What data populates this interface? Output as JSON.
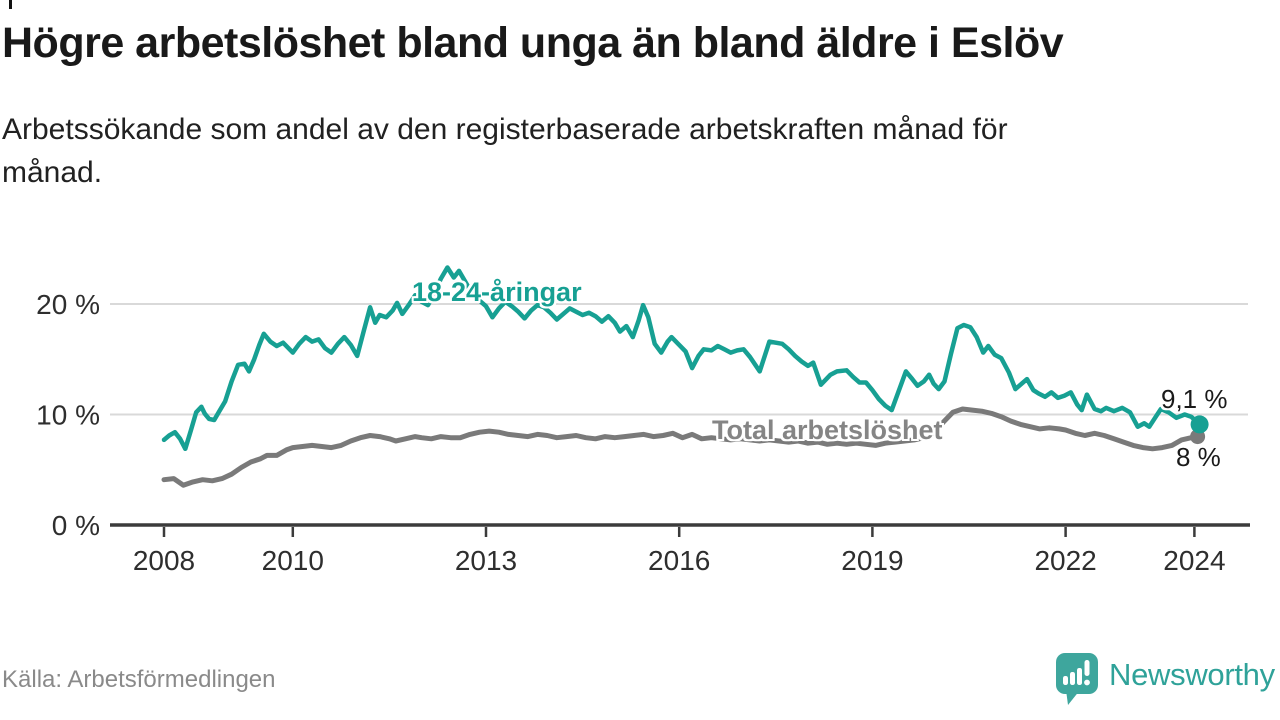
{
  "page": {
    "title": "Högre arbetslöshet bland unga än bland äldre i Eslöv",
    "subtitle": "Arbetssökande som andel av den registerbaserade arbetskraften månad för månad.",
    "source": "Källa: Arbetsförmedlingen",
    "brand": {
      "name": "Newsworthy",
      "icon": "newsworthy-speech-bubble-chart-icon"
    }
  },
  "colors": {
    "youth": "#17A093",
    "total": "#7A7A7A",
    "total_label": "#858585",
    "grid": "#D9D9D9",
    "axis": "#3B3B3B",
    "axis_text": "#2E2E2E",
    "value_text": "#1A1A1A",
    "brand_teal": "#2FA299",
    "brand_bubble": "#3EA69D"
  },
  "chart_data": {
    "type": "line",
    "title": "Högre arbetslöshet bland unga än bland äldre i Eslöv",
    "subtitle": "Arbetssökande som andel av den registerbaserade arbetskraften månad för månad.",
    "unit": "%",
    "x_unit": "decimal_year",
    "xlabel": "",
    "ylabel": "",
    "xlim": [
      2007.9,
      2024.4
    ],
    "ylim": [
      0,
      24
    ],
    "grid": "horizontal",
    "legend": "inline-labels",
    "x_ticks": [
      {
        "value": 2008,
        "label": "2008"
      },
      {
        "value": 2010,
        "label": "2010"
      },
      {
        "value": 2013,
        "label": "2013"
      },
      {
        "value": 2016,
        "label": "2016"
      },
      {
        "value": 2019,
        "label": "2019"
      },
      {
        "value": 2022,
        "label": "2022"
      },
      {
        "value": 2024,
        "label": "2024"
      }
    ],
    "y_ticks": [
      {
        "value": 0,
        "label": "0 %"
      },
      {
        "value": 10,
        "label": "10 %"
      },
      {
        "value": 20,
        "label": "20 %"
      }
    ],
    "series": [
      {
        "id": "youth",
        "name": "18-24-åringar",
        "color": "#17A093",
        "end_label": "9,1 %",
        "end_value": 9.1,
        "points": [
          [
            2008.0,
            7.7
          ],
          [
            2008.08,
            8.1
          ],
          [
            2008.17,
            8.4
          ],
          [
            2008.25,
            7.8
          ],
          [
            2008.33,
            6.9
          ],
          [
            2008.42,
            8.6
          ],
          [
            2008.5,
            10.2
          ],
          [
            2008.58,
            10.7
          ],
          [
            2008.63,
            10.1
          ],
          [
            2008.7,
            9.6
          ],
          [
            2008.78,
            9.5
          ],
          [
            2008.85,
            10.2
          ],
          [
            2008.95,
            11.2
          ],
          [
            2009.05,
            13.0
          ],
          [
            2009.15,
            14.5
          ],
          [
            2009.25,
            14.6
          ],
          [
            2009.32,
            13.9
          ],
          [
            2009.4,
            15.0
          ],
          [
            2009.48,
            16.3
          ],
          [
            2009.55,
            17.3
          ],
          [
            2009.65,
            16.6
          ],
          [
            2009.75,
            16.2
          ],
          [
            2009.85,
            16.5
          ],
          [
            2009.95,
            15.9
          ],
          [
            2010.0,
            15.6
          ],
          [
            2010.1,
            16.4
          ],
          [
            2010.2,
            17.0
          ],
          [
            2010.3,
            16.6
          ],
          [
            2010.4,
            16.8
          ],
          [
            2010.5,
            16.0
          ],
          [
            2010.6,
            15.6
          ],
          [
            2010.7,
            16.4
          ],
          [
            2010.8,
            17.0
          ],
          [
            2010.9,
            16.3
          ],
          [
            2011.0,
            15.3
          ],
          [
            2011.1,
            17.5
          ],
          [
            2011.2,
            19.7
          ],
          [
            2011.28,
            18.3
          ],
          [
            2011.35,
            19.0
          ],
          [
            2011.45,
            18.8
          ],
          [
            2011.55,
            19.4
          ],
          [
            2011.62,
            20.1
          ],
          [
            2011.7,
            19.1
          ],
          [
            2011.8,
            19.9
          ],
          [
            2011.9,
            20.8
          ],
          [
            2012.0,
            20.2
          ],
          [
            2012.1,
            19.9
          ],
          [
            2012.2,
            21.0
          ],
          [
            2012.3,
            22.3
          ],
          [
            2012.4,
            23.3
          ],
          [
            2012.5,
            22.4
          ],
          [
            2012.58,
            23.0
          ],
          [
            2012.68,
            22.0
          ],
          [
            2012.8,
            20.8
          ],
          [
            2012.9,
            20.3
          ],
          [
            2013.0,
            19.8
          ],
          [
            2013.1,
            18.8
          ],
          [
            2013.2,
            19.6
          ],
          [
            2013.3,
            20.2
          ],
          [
            2013.4,
            19.8
          ],
          [
            2013.5,
            19.3
          ],
          [
            2013.6,
            18.7
          ],
          [
            2013.7,
            19.4
          ],
          [
            2013.8,
            19.9
          ],
          [
            2013.9,
            19.7
          ],
          [
            2014.0,
            19.2
          ],
          [
            2014.1,
            18.6
          ],
          [
            2014.2,
            19.1
          ],
          [
            2014.3,
            19.6
          ],
          [
            2014.4,
            19.3
          ],
          [
            2014.5,
            19.0
          ],
          [
            2014.6,
            19.2
          ],
          [
            2014.7,
            18.9
          ],
          [
            2014.8,
            18.4
          ],
          [
            2014.9,
            18.9
          ],
          [
            2015.0,
            18.3
          ],
          [
            2015.08,
            17.5
          ],
          [
            2015.18,
            18.0
          ],
          [
            2015.28,
            17.0
          ],
          [
            2015.37,
            18.5
          ],
          [
            2015.44,
            19.9
          ],
          [
            2015.52,
            18.8
          ],
          [
            2015.62,
            16.4
          ],
          [
            2015.72,
            15.6
          ],
          [
            2015.82,
            16.6
          ],
          [
            2015.88,
            17.0
          ],
          [
            2016.0,
            16.3
          ],
          [
            2016.1,
            15.7
          ],
          [
            2016.2,
            14.2
          ],
          [
            2016.3,
            15.3
          ],
          [
            2016.38,
            15.9
          ],
          [
            2016.5,
            15.8
          ],
          [
            2016.6,
            16.2
          ],
          [
            2016.7,
            15.9
          ],
          [
            2016.8,
            15.6
          ],
          [
            2016.9,
            15.8
          ],
          [
            2017.0,
            15.9
          ],
          [
            2017.1,
            15.2
          ],
          [
            2017.25,
            13.9
          ],
          [
            2017.4,
            16.6
          ],
          [
            2017.5,
            16.5
          ],
          [
            2017.6,
            16.4
          ],
          [
            2017.7,
            15.9
          ],
          [
            2017.8,
            15.3
          ],
          [
            2017.9,
            14.8
          ],
          [
            2018.0,
            14.4
          ],
          [
            2018.08,
            14.7
          ],
          [
            2018.2,
            12.7
          ],
          [
            2018.35,
            13.6
          ],
          [
            2018.45,
            13.9
          ],
          [
            2018.6,
            14.0
          ],
          [
            2018.7,
            13.4
          ],
          [
            2018.8,
            12.9
          ],
          [
            2018.9,
            12.9
          ],
          [
            2019.0,
            12.2
          ],
          [
            2019.1,
            11.4
          ],
          [
            2019.2,
            10.8
          ],
          [
            2019.3,
            10.4
          ],
          [
            2019.4,
            12.0
          ],
          [
            2019.52,
            13.9
          ],
          [
            2019.62,
            13.2
          ],
          [
            2019.7,
            12.6
          ],
          [
            2019.8,
            13.0
          ],
          [
            2019.88,
            13.6
          ],
          [
            2019.95,
            12.8
          ],
          [
            2020.03,
            12.3
          ],
          [
            2020.12,
            13.0
          ],
          [
            2020.22,
            15.5
          ],
          [
            2020.32,
            17.8
          ],
          [
            2020.42,
            18.1
          ],
          [
            2020.52,
            17.9
          ],
          [
            2020.62,
            17.0
          ],
          [
            2020.72,
            15.6
          ],
          [
            2020.8,
            16.2
          ],
          [
            2020.9,
            15.4
          ],
          [
            2021.0,
            15.1
          ],
          [
            2021.12,
            13.8
          ],
          [
            2021.22,
            12.3
          ],
          [
            2021.32,
            12.8
          ],
          [
            2021.4,
            13.2
          ],
          [
            2021.5,
            12.2
          ],
          [
            2021.58,
            11.9
          ],
          [
            2021.68,
            11.6
          ],
          [
            2021.78,
            12.0
          ],
          [
            2021.88,
            11.5
          ],
          [
            2021.98,
            11.7
          ],
          [
            2022.08,
            12.0
          ],
          [
            2022.18,
            10.9
          ],
          [
            2022.25,
            10.4
          ],
          [
            2022.33,
            11.8
          ],
          [
            2022.45,
            10.5
          ],
          [
            2022.55,
            10.3
          ],
          [
            2022.63,
            10.6
          ],
          [
            2022.75,
            10.3
          ],
          [
            2022.88,
            10.6
          ],
          [
            2023.0,
            10.2
          ],
          [
            2023.12,
            8.9
          ],
          [
            2023.22,
            9.2
          ],
          [
            2023.3,
            8.9
          ],
          [
            2023.4,
            9.8
          ],
          [
            2023.48,
            10.5
          ],
          [
            2023.6,
            10.2
          ],
          [
            2023.72,
            9.7
          ],
          [
            2023.85,
            10.0
          ],
          [
            2023.95,
            9.8
          ],
          [
            2024.08,
            9.1
          ]
        ]
      },
      {
        "id": "total",
        "name": "Total arbetslöshet",
        "color": "#7A7A7A",
        "end_label": "8 %",
        "end_value": 8.0,
        "points": [
          [
            2008.0,
            4.1
          ],
          [
            2008.15,
            4.2
          ],
          [
            2008.3,
            3.6
          ],
          [
            2008.45,
            3.9
          ],
          [
            2008.6,
            4.1
          ],
          [
            2008.75,
            4.0
          ],
          [
            2008.9,
            4.2
          ],
          [
            2009.05,
            4.6
          ],
          [
            2009.2,
            5.2
          ],
          [
            2009.35,
            5.7
          ],
          [
            2009.5,
            6.0
          ],
          [
            2009.6,
            6.3
          ],
          [
            2009.75,
            6.3
          ],
          [
            2009.9,
            6.8
          ],
          [
            2010.0,
            7.0
          ],
          [
            2010.15,
            7.1
          ],
          [
            2010.3,
            7.2
          ],
          [
            2010.45,
            7.1
          ],
          [
            2010.6,
            7.0
          ],
          [
            2010.75,
            7.2
          ],
          [
            2010.9,
            7.6
          ],
          [
            2011.05,
            7.9
          ],
          [
            2011.2,
            8.1
          ],
          [
            2011.35,
            8.0
          ],
          [
            2011.5,
            7.8
          ],
          [
            2011.6,
            7.6
          ],
          [
            2011.75,
            7.8
          ],
          [
            2011.9,
            8.0
          ],
          [
            2012.0,
            7.9
          ],
          [
            2012.15,
            7.8
          ],
          [
            2012.3,
            8.0
          ],
          [
            2012.45,
            7.9
          ],
          [
            2012.6,
            7.9
          ],
          [
            2012.75,
            8.2
          ],
          [
            2012.9,
            8.4
          ],
          [
            2013.05,
            8.5
          ],
          [
            2013.2,
            8.4
          ],
          [
            2013.35,
            8.2
          ],
          [
            2013.5,
            8.1
          ],
          [
            2013.65,
            8.0
          ],
          [
            2013.8,
            8.2
          ],
          [
            2013.95,
            8.1
          ],
          [
            2014.1,
            7.9
          ],
          [
            2014.25,
            8.0
          ],
          [
            2014.4,
            8.1
          ],
          [
            2014.55,
            7.9
          ],
          [
            2014.7,
            7.8
          ],
          [
            2014.85,
            8.0
          ],
          [
            2015.0,
            7.9
          ],
          [
            2015.15,
            8.0
          ],
          [
            2015.3,
            8.1
          ],
          [
            2015.45,
            8.2
          ],
          [
            2015.6,
            8.0
          ],
          [
            2015.75,
            8.1
          ],
          [
            2015.9,
            8.3
          ],
          [
            2016.05,
            7.9
          ],
          [
            2016.2,
            8.2
          ],
          [
            2016.35,
            7.8
          ],
          [
            2016.5,
            7.9
          ],
          [
            2016.65,
            7.8
          ],
          [
            2016.8,
            7.7
          ],
          [
            2016.95,
            7.8
          ],
          [
            2017.1,
            7.7
          ],
          [
            2017.25,
            7.6
          ],
          [
            2017.4,
            7.7
          ],
          [
            2017.55,
            7.6
          ],
          [
            2017.7,
            7.5
          ],
          [
            2017.85,
            7.6
          ],
          [
            2018.0,
            7.4
          ],
          [
            2018.15,
            7.5
          ],
          [
            2018.3,
            7.3
          ],
          [
            2018.45,
            7.4
          ],
          [
            2018.6,
            7.3
          ],
          [
            2018.75,
            7.4
          ],
          [
            2018.9,
            7.3
          ],
          [
            2019.05,
            7.2
          ],
          [
            2019.2,
            7.4
          ],
          [
            2019.35,
            7.5
          ],
          [
            2019.5,
            7.6
          ],
          [
            2019.65,
            7.7
          ],
          [
            2019.8,
            7.9
          ],
          [
            2019.95,
            8.3
          ],
          [
            2020.1,
            9.3
          ],
          [
            2020.25,
            10.2
          ],
          [
            2020.4,
            10.5
          ],
          [
            2020.55,
            10.4
          ],
          [
            2020.7,
            10.3
          ],
          [
            2020.85,
            10.1
          ],
          [
            2021.0,
            9.8
          ],
          [
            2021.15,
            9.4
          ],
          [
            2021.3,
            9.1
          ],
          [
            2021.45,
            8.9
          ],
          [
            2021.6,
            8.7
          ],
          [
            2021.75,
            8.8
          ],
          [
            2021.9,
            8.7
          ],
          [
            2022.0,
            8.6
          ],
          [
            2022.15,
            8.3
          ],
          [
            2022.3,
            8.1
          ],
          [
            2022.45,
            8.3
          ],
          [
            2022.6,
            8.1
          ],
          [
            2022.75,
            7.8
          ],
          [
            2022.9,
            7.5
          ],
          [
            2023.05,
            7.2
          ],
          [
            2023.2,
            7.0
          ],
          [
            2023.35,
            6.9
          ],
          [
            2023.5,
            7.0
          ],
          [
            2023.65,
            7.2
          ],
          [
            2023.8,
            7.7
          ],
          [
            2023.95,
            7.9
          ],
          [
            2024.05,
            8.0
          ]
        ]
      }
    ]
  }
}
